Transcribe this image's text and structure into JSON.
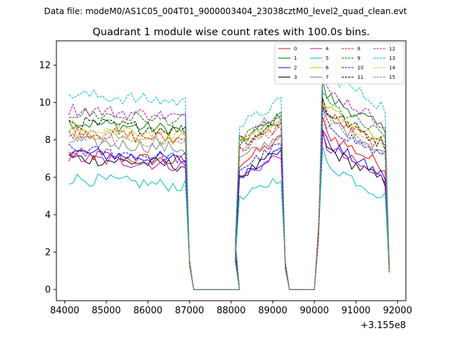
{
  "suptitle": "Data file: modeM0/AS1C05_004T01_9000003404_23038cztM0_level2_quad_clean.evt",
  "chart_data": {
    "type": "line",
    "title": "Quadrant 1 module wise count rates with 100.0s bins.",
    "xlabel": "",
    "ylabel": "",
    "x_offset_label": "+3.155e8",
    "xlim": [
      83800,
      92200
    ],
    "ylim": [
      -0.6,
      13.3
    ],
    "xticks": [
      84000,
      85000,
      86000,
      87000,
      88000,
      89000,
      90000,
      91000,
      92000
    ],
    "yticks": [
      0,
      2,
      4,
      6,
      8,
      10,
      12
    ],
    "segments": [
      {
        "x_start": 84100,
        "x_end": 87000,
        "points": 30
      },
      {
        "x_start": 88100,
        "x_end": 89300,
        "points": 13
      },
      {
        "x_start": 90100,
        "x_end": 91800,
        "points": 18
      }
    ],
    "gap_points": [
      [
        87100,
        0
      ],
      [
        88200,
        0
      ],
      [
        89400,
        0
      ],
      [
        90000,
        0
      ]
    ],
    "series": [
      {
        "name": "0",
        "color": "#ff0000",
        "dash": "solid",
        "levels": [
          6.8,
          7.8,
          8.0
        ]
      },
      {
        "name": "1",
        "color": "#008000",
        "dash": "solid",
        "levels": [
          8.5,
          9.0,
          10.0
        ]
      },
      {
        "name": "2",
        "color": "#0000ff",
        "dash": "solid",
        "levels": [
          6.9,
          7.2,
          7.5
        ]
      },
      {
        "name": "3",
        "color": "#000000",
        "dash": "solid",
        "levels": [
          6.6,
          7.1,
          7.2
        ]
      },
      {
        "name": "4",
        "color": "#bf00bf",
        "dash": "solid",
        "levels": [
          6.6,
          7.0,
          7.3
        ]
      },
      {
        "name": "5",
        "color": "#00bfbf",
        "dash": "solid",
        "levels": [
          5.5,
          5.8,
          6.4
        ]
      },
      {
        "name": "6",
        "color": "#bfbf00",
        "dash": "solid",
        "levels": [
          8.0,
          8.8,
          9.3
        ]
      },
      {
        "name": "7",
        "color": "#808080",
        "dash": "solid",
        "levels": [
          7.5,
          8.0,
          8.8
        ]
      },
      {
        "name": "8",
        "color": "#ff0000",
        "dash": "dashed",
        "levels": [
          8.0,
          8.5,
          9.0
        ]
      },
      {
        "name": "9",
        "color": "#008000",
        "dash": "dashed",
        "levels": [
          9.0,
          9.0,
          9.6
        ]
      },
      {
        "name": "10",
        "color": "#0000ff",
        "dash": "dashed",
        "levels": [
          7.0,
          7.5,
          8.5
        ]
      },
      {
        "name": "11",
        "color": "#000000",
        "dash": "dashed",
        "levels": [
          8.5,
          8.8,
          9.2
        ]
      },
      {
        "name": "12",
        "color": "#bf00bf",
        "dash": "dashed",
        "levels": [
          9.2,
          9.3,
          10.3
        ]
      },
      {
        "name": "13",
        "color": "#00bfbf",
        "dash": "dashed",
        "levels": [
          10.0,
          9.8,
          11.2
        ]
      },
      {
        "name": "14",
        "color": "#bfbf00",
        "dash": "dashed",
        "levels": [
          8.3,
          8.8,
          9.0
        ]
      },
      {
        "name": "15",
        "color": "#808080",
        "dash": "dashed",
        "levels": [
          7.8,
          8.5,
          8.6
        ]
      }
    ],
    "legend_location": "upper right",
    "grid": false
  }
}
